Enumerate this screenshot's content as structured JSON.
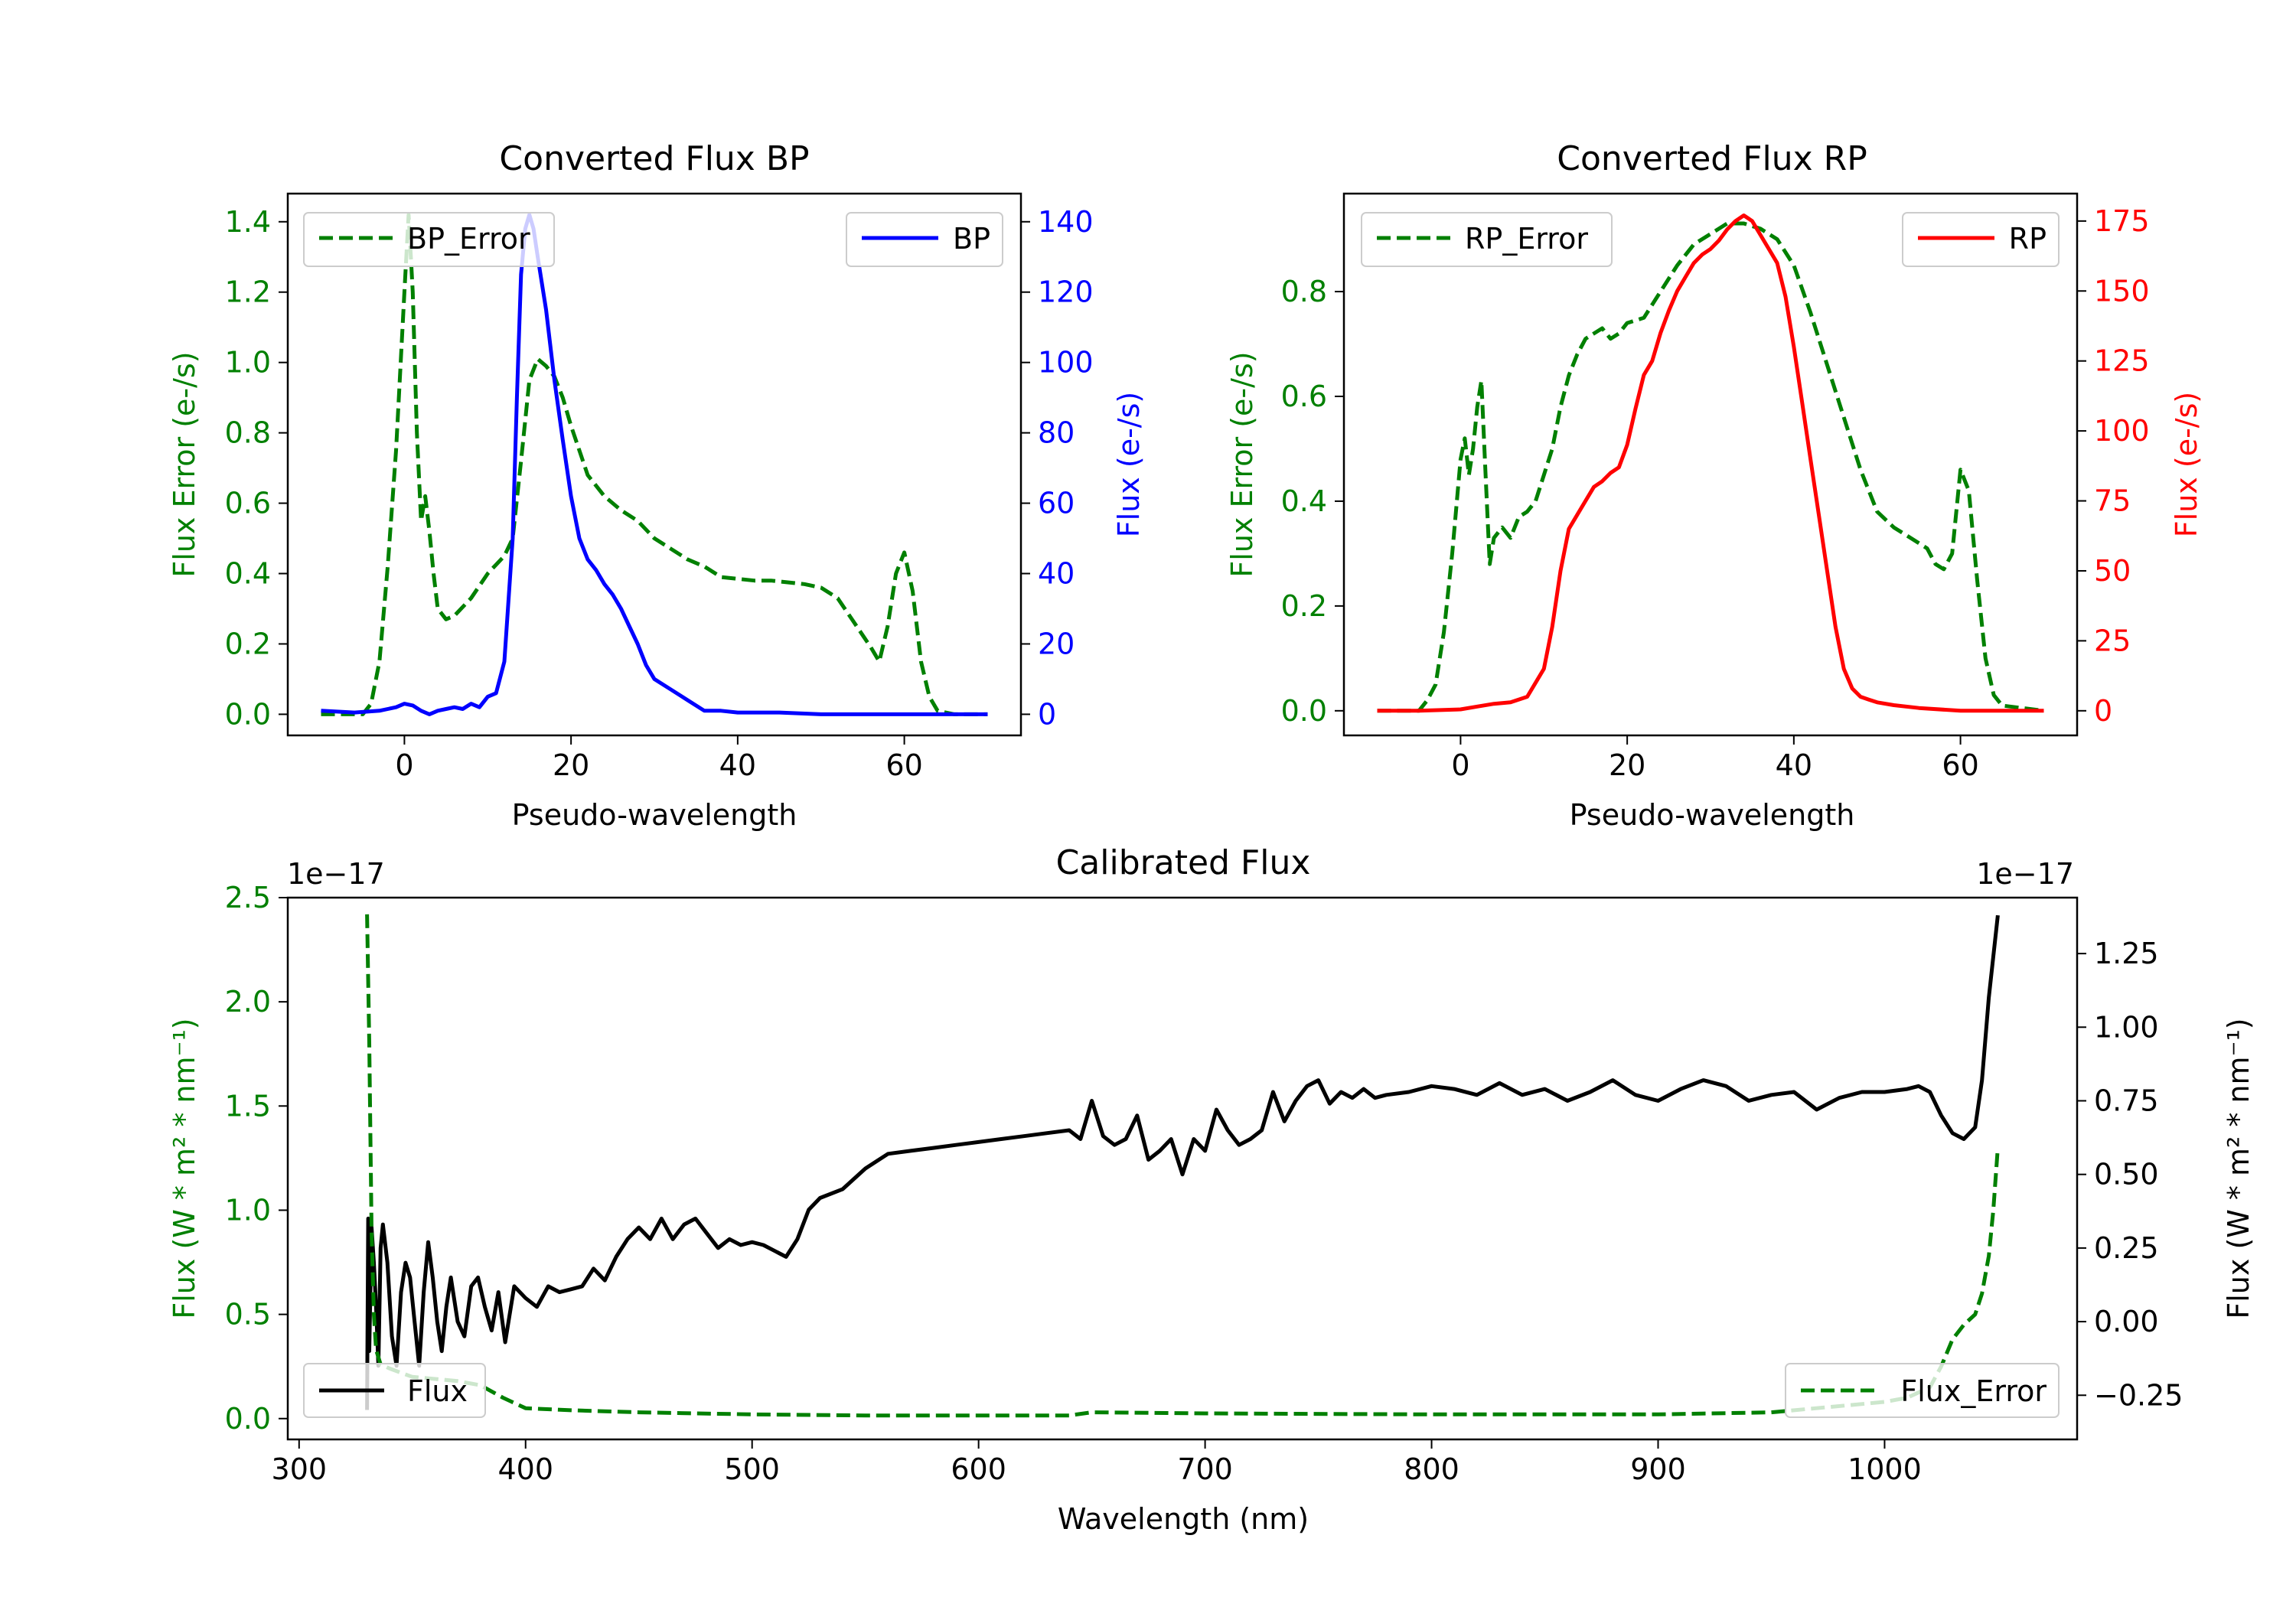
{
  "chart_data": [
    {
      "type": "line",
      "title": "Converted Flux BP",
      "xlabel": "Pseudo-wavelength",
      "xlim": [
        -14,
        74
      ],
      "xticks": [
        0,
        20,
        40,
        60
      ],
      "y_left": {
        "label": "Flux Error (e-/s)",
        "color": "#008000",
        "lim": [
          -0.06,
          1.48
        ],
        "ticks": [
          0.0,
          0.2,
          0.4,
          0.6,
          0.8,
          1.0,
          1.2,
          1.4
        ]
      },
      "y_right": {
        "label": "Flux (e-/s)",
        "color": "#0000ff",
        "lim": [
          -6,
          148
        ],
        "ticks": [
          0,
          20,
          40,
          60,
          80,
          100,
          120,
          140
        ]
      },
      "legends": {
        "left": "BP_Error",
        "right": "BP"
      },
      "series": [
        {
          "name": "BP_Error",
          "axis": "left",
          "color": "#008000",
          "dash": true,
          "x": [
            -10,
            -5,
            -4,
            -3,
            -2,
            -1,
            0,
            0.5,
            1,
            1.5,
            2,
            2.5,
            3,
            3.5,
            4,
            5,
            6,
            8,
            10,
            12,
            13,
            14,
            15,
            16,
            17,
            18,
            19,
            20,
            22,
            24,
            26,
            28,
            30,
            32,
            34,
            36,
            38,
            40,
            42,
            44,
            46,
            48,
            50,
            52,
            54,
            56,
            57,
            58,
            59,
            60,
            61,
            62,
            63,
            64,
            66,
            68,
            70
          ],
          "y": [
            0,
            0,
            0.03,
            0.15,
            0.42,
            0.75,
            1.2,
            1.42,
            1.2,
            0.8,
            0.55,
            0.62,
            0.52,
            0.4,
            0.3,
            0.27,
            0.28,
            0.33,
            0.4,
            0.45,
            0.5,
            0.72,
            0.95,
            1.01,
            0.99,
            0.96,
            0.9,
            0.82,
            0.68,
            0.62,
            0.58,
            0.55,
            0.5,
            0.47,
            0.44,
            0.42,
            0.39,
            0.385,
            0.38,
            0.38,
            0.375,
            0.37,
            0.36,
            0.33,
            0.26,
            0.19,
            0.15,
            0.25,
            0.4,
            0.46,
            0.35,
            0.15,
            0.05,
            0.01,
            0,
            0,
            0
          ]
        },
        {
          "name": "BP",
          "axis": "right",
          "color": "#0000ff",
          "dash": false,
          "x": [
            -10,
            -6,
            -3,
            -1,
            0,
            1,
            2,
            3,
            4,
            5,
            6,
            7,
            8,
            9,
            10,
            11,
            12,
            13,
            13.5,
            14,
            14.5,
            15,
            15.5,
            16,
            17,
            18,
            19,
            20,
            21,
            22,
            23,
            24,
            25,
            26,
            27,
            28,
            29,
            30,
            32,
            34,
            36,
            38,
            40,
            45,
            50,
            55,
            60,
            65,
            70
          ],
          "y": [
            1,
            0.5,
            1,
            2,
            3,
            2.5,
            1,
            0,
            1,
            1.5,
            2,
            1.5,
            3,
            2,
            5,
            6,
            15,
            50,
            90,
            125,
            138,
            142,
            138,
            130,
            115,
            95,
            78,
            62,
            50,
            44,
            41,
            37,
            34,
            30,
            25,
            20,
            14,
            10,
            7,
            4,
            1,
            1,
            0.5,
            0.5,
            0,
            0,
            0,
            0,
            0
          ]
        }
      ]
    },
    {
      "type": "line",
      "title": "Converted Flux RP",
      "xlabel": "Pseudo-wavelength",
      "xlim": [
        -14,
        74
      ],
      "xticks": [
        0,
        20,
        40,
        60
      ],
      "y_left": {
        "label": "Flux Error (e-/s)",
        "color": "#008000",
        "lim": [
          -0.047,
          0.987
        ],
        "ticks": [
          0.0,
          0.2,
          0.4,
          0.6,
          0.8
        ]
      },
      "y_right": {
        "label": "Flux (e-/s)",
        "color": "#ff0000",
        "lim": [
          -8.8,
          184.8
        ],
        "ticks": [
          0,
          25,
          50,
          75,
          100,
          125,
          150,
          175
        ]
      },
      "legends": {
        "left": "RP_Error",
        "right": "RP"
      },
      "series": [
        {
          "name": "RP_Error",
          "axis": "left",
          "color": "#008000",
          "dash": true,
          "x": [
            -10,
            -5,
            -4,
            -3,
            -2,
            -1,
            0,
            0.5,
            1,
            1.5,
            2,
            2.5,
            3,
            3.5,
            4,
            5,
            6,
            7,
            8,
            9,
            10,
            11,
            12,
            13,
            14,
            15,
            16,
            17,
            18,
            19,
            20,
            22,
            24,
            26,
            28,
            30,
            32,
            34,
            36,
            38,
            40,
            42,
            44,
            46,
            48,
            50,
            52,
            54,
            55,
            56,
            57,
            58,
            59,
            60,
            61,
            62,
            63,
            64,
            65,
            70
          ],
          "y": [
            0,
            0,
            0.02,
            0.05,
            0.15,
            0.3,
            0.48,
            0.52,
            0.45,
            0.5,
            0.58,
            0.63,
            0.45,
            0.28,
            0.33,
            0.35,
            0.33,
            0.37,
            0.38,
            0.4,
            0.45,
            0.5,
            0.58,
            0.64,
            0.68,
            0.71,
            0.72,
            0.73,
            0.71,
            0.72,
            0.74,
            0.75,
            0.8,
            0.85,
            0.89,
            0.91,
            0.93,
            0.93,
            0.92,
            0.9,
            0.85,
            0.76,
            0.66,
            0.56,
            0.46,
            0.38,
            0.35,
            0.33,
            0.32,
            0.31,
            0.28,
            0.27,
            0.3,
            0.46,
            0.42,
            0.25,
            0.1,
            0.03,
            0.01,
            0
          ]
        },
        {
          "name": "RP",
          "axis": "right",
          "color": "#ff0000",
          "dash": false,
          "x": [
            -10,
            -5,
            0,
            2,
            4,
            6,
            8,
            10,
            11,
            12,
            13,
            14,
            15,
            16,
            17,
            18,
            19,
            20,
            21,
            22,
            23,
            24,
            25,
            26,
            27,
            28,
            29,
            30,
            31,
            32,
            33,
            34,
            35,
            36,
            37,
            38,
            39,
            40,
            41,
            42,
            43,
            44,
            45,
            46,
            47,
            48,
            49,
            50,
            52,
            55,
            60,
            65,
            70
          ],
          "y": [
            0,
            0,
            0.5,
            1.5,
            2.5,
            3,
            5,
            15,
            30,
            50,
            65,
            70,
            75,
            80,
            82,
            85,
            87,
            95,
            108,
            120,
            125,
            135,
            143,
            150,
            155,
            160,
            163,
            165,
            168,
            172,
            175,
            177,
            175,
            170,
            165,
            160,
            148,
            130,
            110,
            90,
            70,
            50,
            30,
            15,
            8,
            5,
            4,
            3,
            2,
            1,
            0,
            0,
            0
          ]
        }
      ]
    },
    {
      "type": "line",
      "title": "Calibrated Flux",
      "xlabel": "Wavelength (nm)",
      "xlim": [
        295,
        1085
      ],
      "xticks": [
        300,
        400,
        500,
        600,
        700,
        800,
        900,
        1000
      ],
      "y_left": {
        "label": "Flux (W * m² * nm⁻¹)",
        "color": "#008000",
        "lim": [
          -0.1,
          2.5
        ],
        "ticks": [
          0.0,
          0.5,
          1.0,
          1.5,
          2.0,
          2.5
        ],
        "offset_text": "1e−17"
      },
      "y_right": {
        "label": "Flux (W * m² * nm⁻¹)",
        "color": "#000000",
        "lim": [
          -0.4,
          1.44
        ],
        "ticks": [
          -0.25,
          0.0,
          0.25,
          0.5,
          0.75,
          1.0,
          1.25
        ],
        "offset_text": "1e−17"
      },
      "legends": {
        "left": "Flux",
        "right": "Flux_Error"
      },
      "series": [
        {
          "name": "Flux",
          "axis": "right",
          "color": "#000000",
          "dash": false,
          "x": [
            330,
            330.5,
            331,
            332,
            333,
            334,
            335,
            336,
            337,
            339,
            341,
            343,
            345,
            347,
            349,
            351,
            353,
            355,
            357,
            359,
            361,
            363,
            365,
            367,
            370,
            373,
            376,
            379,
            382,
            385,
            388,
            391,
            395,
            400,
            405,
            410,
            415,
            420,
            425,
            430,
            435,
            440,
            445,
            450,
            455,
            460,
            465,
            470,
            475,
            480,
            485,
            490,
            495,
            500,
            505,
            510,
            515,
            520,
            525,
            530,
            540,
            550,
            560,
            570,
            580,
            590,
            600,
            610,
            620,
            630,
            640,
            645,
            650,
            655,
            660,
            665,
            670,
            675,
            680,
            685,
            690,
            695,
            700,
            705,
            710,
            715,
            720,
            725,
            730,
            735,
            740,
            745,
            750,
            755,
            760,
            765,
            770,
            775,
            780,
            790,
            800,
            810,
            820,
            830,
            840,
            850,
            860,
            870,
            880,
            890,
            900,
            910,
            920,
            930,
            940,
            950,
            960,
            970,
            980,
            990,
            1000,
            1010,
            1015,
            1020,
            1025,
            1030,
            1035,
            1040,
            1043,
            1046,
            1050
          ],
          "y": [
            -0.3,
            0.35,
            -0.1,
            0.32,
            0.2,
            0.05,
            -0.15,
            0.25,
            0.33,
            0.2,
            -0.05,
            -0.15,
            0.1,
            0.2,
            0.15,
            0.0,
            -0.15,
            0.1,
            0.27,
            0.15,
            0.0,
            -0.1,
            0.05,
            0.15,
            0.0,
            -0.05,
            0.12,
            0.15,
            0.05,
            -0.03,
            0.1,
            -0.07,
            0.12,
            0.08,
            0.05,
            0.12,
            0.1,
            0.11,
            0.12,
            0.18,
            0.14,
            0.22,
            0.28,
            0.32,
            0.28,
            0.35,
            0.28,
            0.33,
            0.35,
            0.3,
            0.25,
            0.28,
            0.26,
            0.27,
            0.26,
            0.24,
            0.22,
            0.28,
            0.38,
            0.42,
            0.45,
            0.52,
            0.57,
            0.58,
            0.59,
            0.6,
            0.61,
            0.62,
            0.63,
            0.64,
            0.65,
            0.62,
            0.75,
            0.63,
            0.6,
            0.62,
            0.7,
            0.55,
            0.58,
            0.62,
            0.5,
            0.62,
            0.58,
            0.72,
            0.65,
            0.6,
            0.62,
            0.65,
            0.78,
            0.68,
            0.75,
            0.8,
            0.82,
            0.74,
            0.78,
            0.76,
            0.79,
            0.76,
            0.77,
            0.78,
            0.8,
            0.79,
            0.77,
            0.81,
            0.77,
            0.79,
            0.75,
            0.78,
            0.82,
            0.77,
            0.75,
            0.79,
            0.82,
            0.8,
            0.75,
            0.77,
            0.78,
            0.72,
            0.76,
            0.78,
            0.78,
            0.79,
            0.8,
            0.78,
            0.7,
            0.64,
            0.62,
            0.66,
            0.82,
            1.1,
            1.38
          ]
        },
        {
          "name": "Flux_Error",
          "axis": "left",
          "color": "#008000",
          "dash": true,
          "x": [
            330,
            331,
            332,
            333,
            334,
            336,
            338,
            340,
            345,
            350,
            360,
            370,
            380,
            390,
            400,
            420,
            450,
            500,
            550,
            600,
            640,
            650,
            700,
            800,
            900,
            950,
            1000,
            1010,
            1020,
            1025,
            1030,
            1035,
            1040,
            1043,
            1046,
            1048,
            1050
          ],
          "y": [
            2.42,
            1.8,
            0.9,
            0.5,
            0.33,
            0.26,
            0.25,
            0.24,
            0.22,
            0.2,
            0.19,
            0.18,
            0.16,
            0.1,
            0.05,
            0.04,
            0.03,
            0.02,
            0.015,
            0.015,
            0.015,
            0.03,
            0.025,
            0.02,
            0.02,
            0.03,
            0.08,
            0.1,
            0.15,
            0.25,
            0.38,
            0.45,
            0.5,
            0.6,
            0.78,
            1.0,
            1.3
          ]
        }
      ]
    }
  ]
}
